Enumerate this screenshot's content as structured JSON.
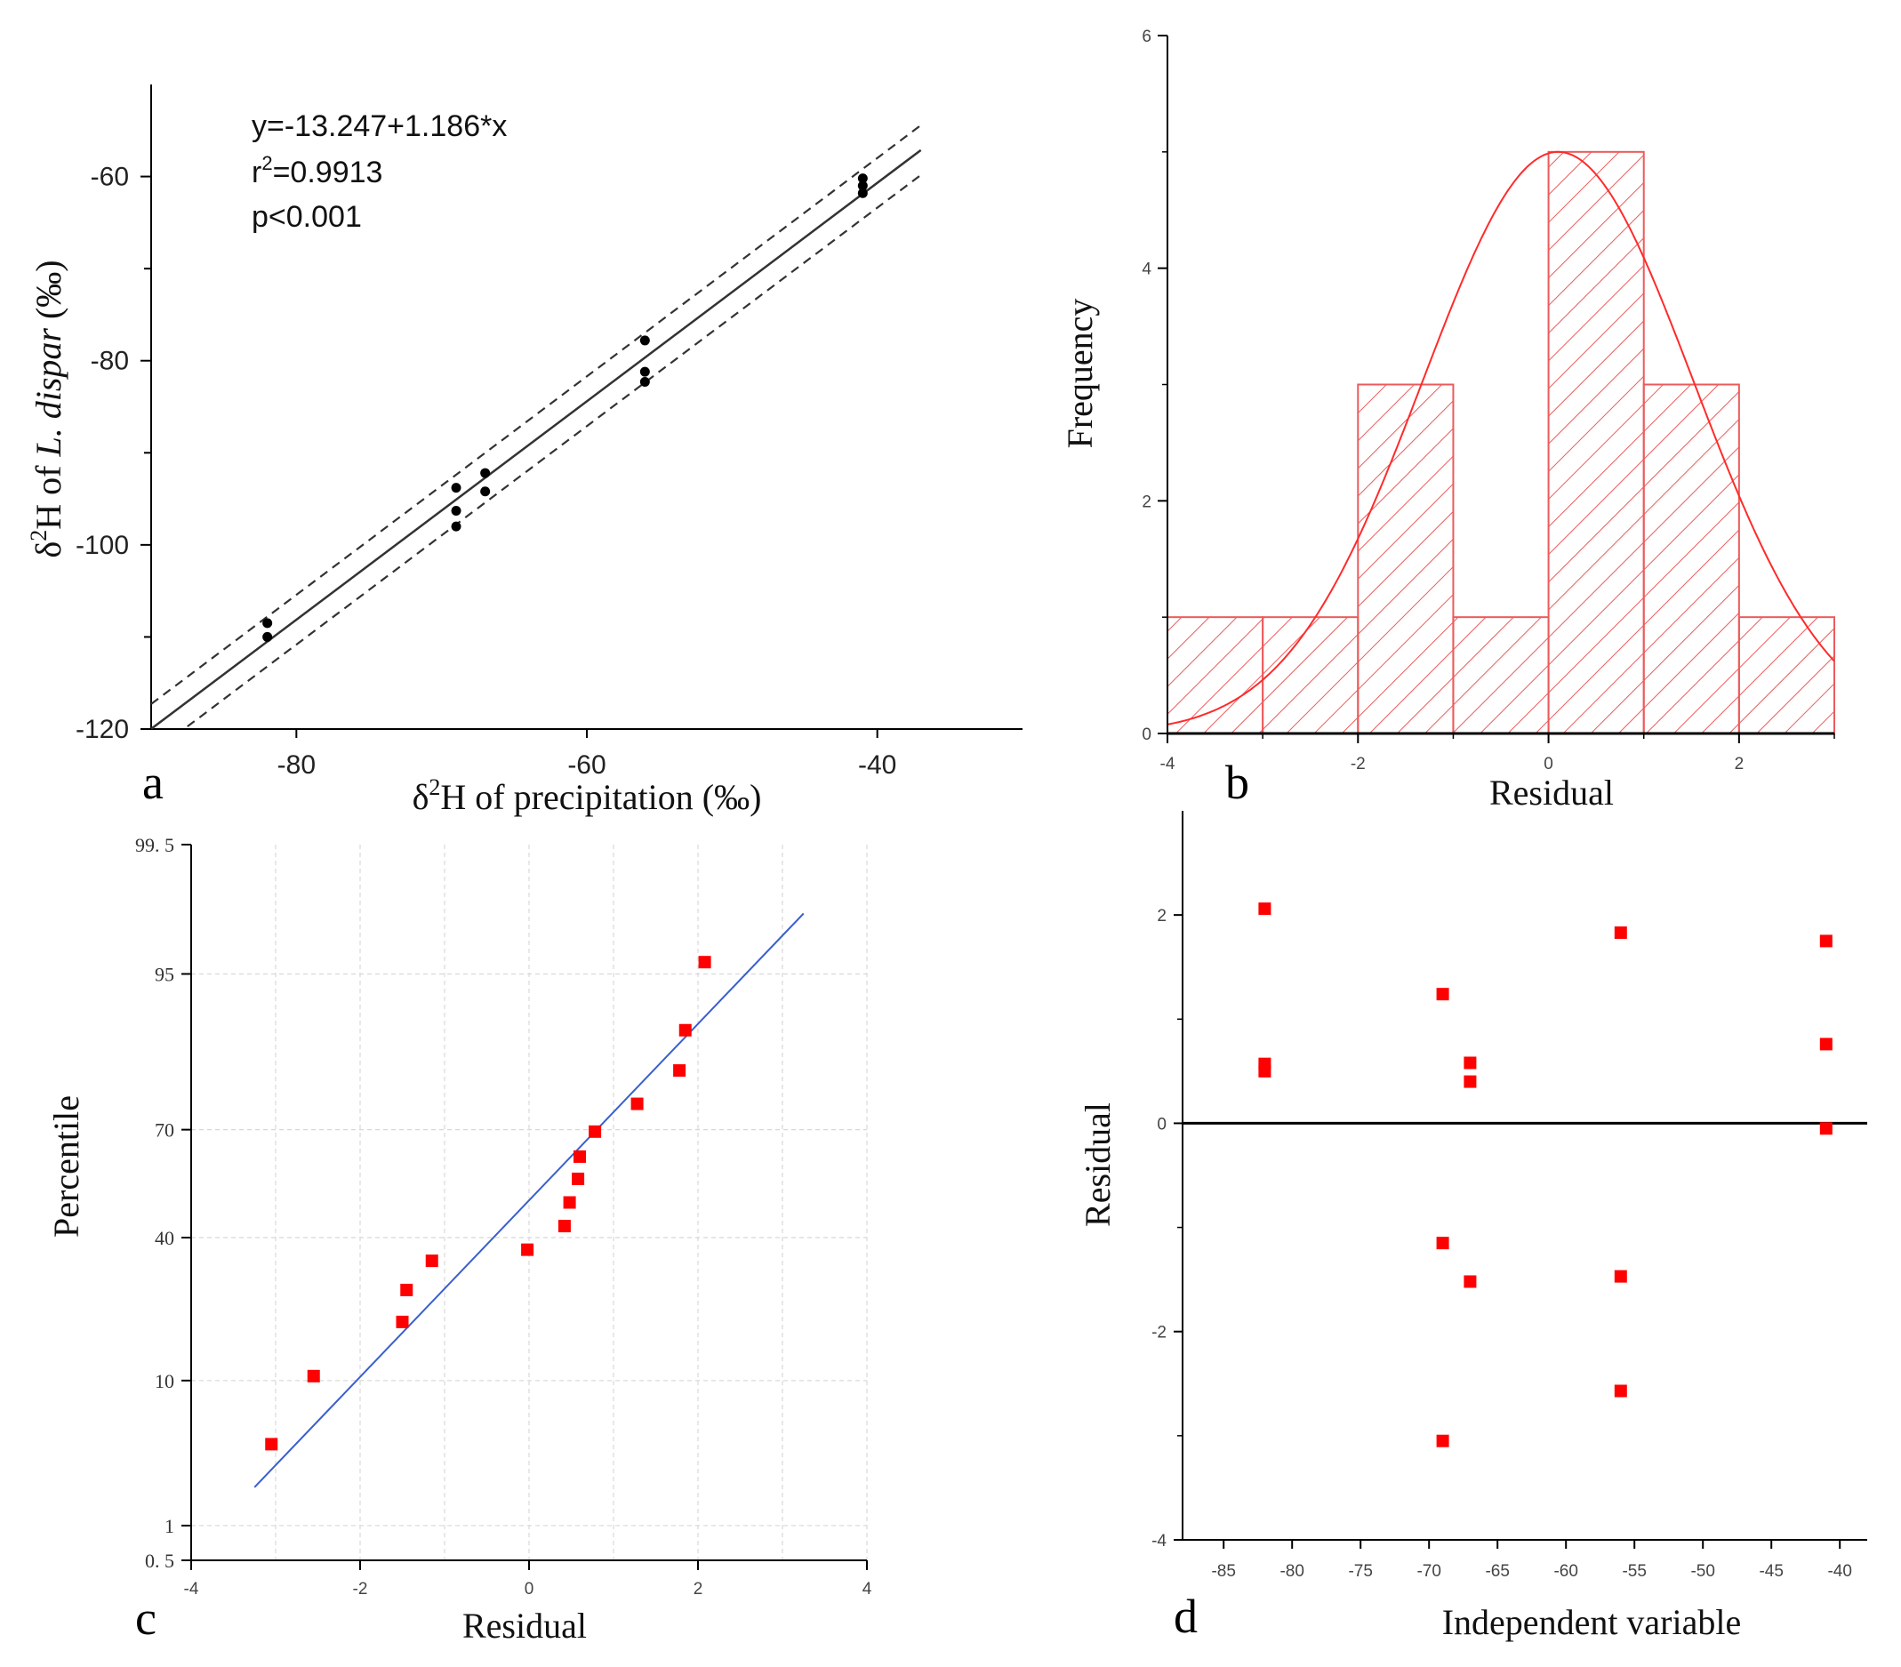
{
  "colors": {
    "black": "#000000",
    "red": "#ff0000",
    "hist": "#ec5b5b",
    "blue": "#3a5fcd",
    "grid": "#d8d8d8"
  },
  "chart_data": [
    {
      "panel": "a",
      "type": "scatter",
      "xlabel": {
        "pre": "δ",
        "sup": "2",
        "post": "H of precipitation (‰)"
      },
      "ylabel": {
        "pre": "δ",
        "sup": "2",
        "mid": "H of ",
        "ital": "L. dispar",
        "post": " (‰)"
      },
      "xlim": [
        -90,
        -30
      ],
      "ylim": [
        -120,
        -50
      ],
      "xticks": [
        -80,
        -60,
        -40
      ],
      "yticks": [
        -60,
        -80,
        -100,
        -120
      ],
      "annotation": {
        "eq": "y=-13.247+1.186*x",
        "r2_pre": "r",
        "r2_sup": "2",
        "r2_post": "=0.9913",
        "p": "p<0.001"
      },
      "fit": {
        "intercept": -13.247,
        "slope": 1.186
      },
      "points": [
        {
          "x": -82,
          "y": -108.5
        },
        {
          "x": -82,
          "y": -110.0
        },
        {
          "x": -69,
          "y": -93.8
        },
        {
          "x": -69,
          "y": -96.3
        },
        {
          "x": -69,
          "y": -98.0
        },
        {
          "x": -67,
          "y": -92.2
        },
        {
          "x": -67,
          "y": -94.2
        },
        {
          "x": -56,
          "y": -77.8
        },
        {
          "x": -56,
          "y": -81.2
        },
        {
          "x": -56,
          "y": -82.3
        },
        {
          "x": -41,
          "y": -60.2
        },
        {
          "x": -41,
          "y": -61.0
        },
        {
          "x": -41,
          "y": -61.8
        }
      ]
    },
    {
      "panel": "b",
      "type": "bar",
      "xlabel": "Residual",
      "ylabel": "Frequency",
      "xlim": [
        -4,
        3
      ],
      "ylim": [
        0,
        6
      ],
      "xticks": [
        -4,
        -2,
        0,
        2
      ],
      "yticks": [
        0,
        2,
        4,
        6
      ],
      "bins": [
        {
          "x0": -4,
          "x1": -3,
          "count": 1
        },
        {
          "x0": -3,
          "x1": -2,
          "count": 1
        },
        {
          "x0": -2,
          "x1": -1,
          "count": 3
        },
        {
          "x0": -1,
          "x1": 0,
          "count": 1
        },
        {
          "x0": 0,
          "x1": 1,
          "count": 5
        },
        {
          "x0": 1,
          "x1": 2,
          "count": 3
        },
        {
          "x0": 2,
          "x1": 3,
          "count": 1
        }
      ],
      "normal_curve": {
        "mean": 0.1,
        "sd": 1.42,
        "peak": 5.0
      }
    },
    {
      "panel": "c",
      "type": "scatter",
      "xlabel": "Residual",
      "ylabel": "Percentile",
      "xlim": [
        -4,
        4
      ],
      "xticks": [
        -4,
        -2,
        0,
        2,
        4
      ],
      "yticks": [
        {
          "label": "99. 5",
          "z": 2.576
        },
        {
          "label": "95",
          "z": 1.645
        },
        {
          "label": "70",
          "z": 0.524
        },
        {
          "label": "40",
          "z": -0.253
        },
        {
          "label": "10",
          "z": -1.282
        },
        {
          "label": "1",
          "z": -2.326
        },
        {
          "label": "0. 5",
          "z": -2.576
        }
      ],
      "gridlines_x": [
        -3,
        -2,
        -1,
        0,
        1,
        2,
        3,
        4
      ],
      "fit": {
        "x1": -3.25,
        "z1": -2.05,
        "x2": 3.25,
        "z2": 2.08
      },
      "points": [
        {
          "x": -3.05,
          "z": -1.74
        },
        {
          "x": -2.55,
          "z": -1.25
        },
        {
          "x": -1.5,
          "z": -0.86
        },
        {
          "x": -1.45,
          "z": -0.63
        },
        {
          "x": -1.15,
          "z": -0.42
        },
        {
          "x": -0.02,
          "z": -0.34
        },
        {
          "x": 0.42,
          "z": -0.17
        },
        {
          "x": 0.48,
          "z": 0.0
        },
        {
          "x": 0.58,
          "z": 0.17
        },
        {
          "x": 0.6,
          "z": 0.33
        },
        {
          "x": 0.78,
          "z": 0.51
        },
        {
          "x": 1.28,
          "z": 0.71
        },
        {
          "x": 1.78,
          "z": 0.95
        },
        {
          "x": 1.85,
          "z": 1.24
        },
        {
          "x": 2.08,
          "z": 1.73
        }
      ]
    },
    {
      "panel": "d",
      "type": "scatter",
      "xlabel": "Independent variable",
      "ylabel": "Residual",
      "xlim": [
        -88,
        -38
      ],
      "ylim": [
        -4,
        3
      ],
      "xticks": [
        -85,
        -80,
        -75,
        -70,
        -65,
        -60,
        -55,
        -50,
        -45,
        -40
      ],
      "yticks": [
        2,
        0,
        -2,
        -4
      ],
      "points": [
        {
          "x": -82,
          "y": 2.06
        },
        {
          "x": -82,
          "y": 0.57
        },
        {
          "x": -82,
          "y": 0.5
        },
        {
          "x": -69,
          "y": 1.24
        },
        {
          "x": -69,
          "y": -1.15
        },
        {
          "x": -69,
          "y": -3.05
        },
        {
          "x": -67,
          "y": 0.58
        },
        {
          "x": -67,
          "y": 0.4
        },
        {
          "x": -67,
          "y": -1.52
        },
        {
          "x": -56,
          "y": 1.83
        },
        {
          "x": -56,
          "y": -1.47
        },
        {
          "x": -56,
          "y": -2.57
        },
        {
          "x": -41,
          "y": 1.75
        },
        {
          "x": -41,
          "y": 0.76
        },
        {
          "x": -41,
          "y": -0.05
        }
      ]
    }
  ]
}
